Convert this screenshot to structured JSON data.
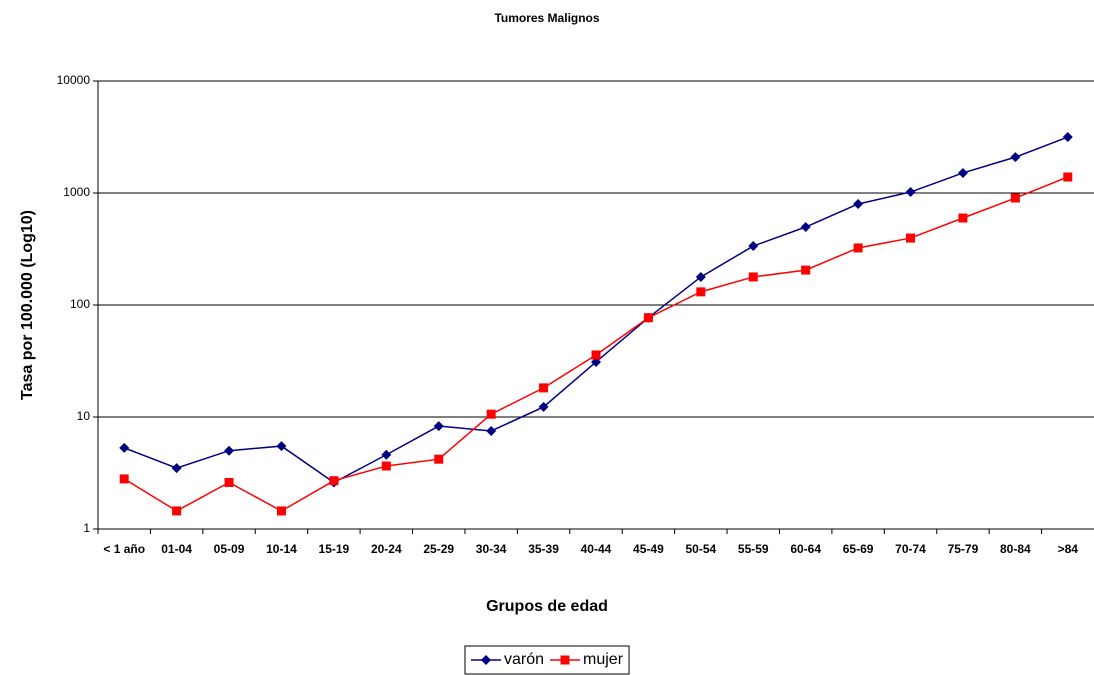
{
  "chart_data": {
    "type": "line",
    "title": "Tumores Malignos",
    "x_label": "Grupos de edad",
    "y_label": "Tasa por 100.000 (Log10)",
    "categories": [
      "< 1 año",
      "01-04",
      "05-09",
      "10-14",
      "15-19",
      "20-24",
      "25-29",
      "30-34",
      "35-39",
      "40-44",
      "45-49",
      "50-54",
      "55-59",
      "60-64",
      "65-69",
      "70-74",
      "75-79",
      "80-84",
      ">84"
    ],
    "series": [
      {
        "name": "varón",
        "color": "#000080",
        "marker": "diamond",
        "values": [
          5.3,
          3.5,
          5.0,
          5.5,
          2.6,
          4.6,
          8.3,
          7.5,
          12.3,
          31,
          77,
          178,
          336,
          497,
          798,
          1020,
          1510,
          2090,
          3160
        ]
      },
      {
        "name": "mujer",
        "color": "#ff0000",
        "marker": "square",
        "values": [
          2.8,
          1.45,
          2.6,
          1.45,
          2.7,
          3.65,
          4.2,
          10.6,
          18.2,
          35.8,
          77,
          131,
          178,
          205,
          323,
          396,
          598,
          902,
          1390
        ]
      }
    ],
    "ylim": [
      1,
      10000
    ],
    "yticks": [
      1,
      10,
      100,
      1000,
      10000
    ],
    "log_y": true,
    "grid": true,
    "legend": "bottom"
  }
}
